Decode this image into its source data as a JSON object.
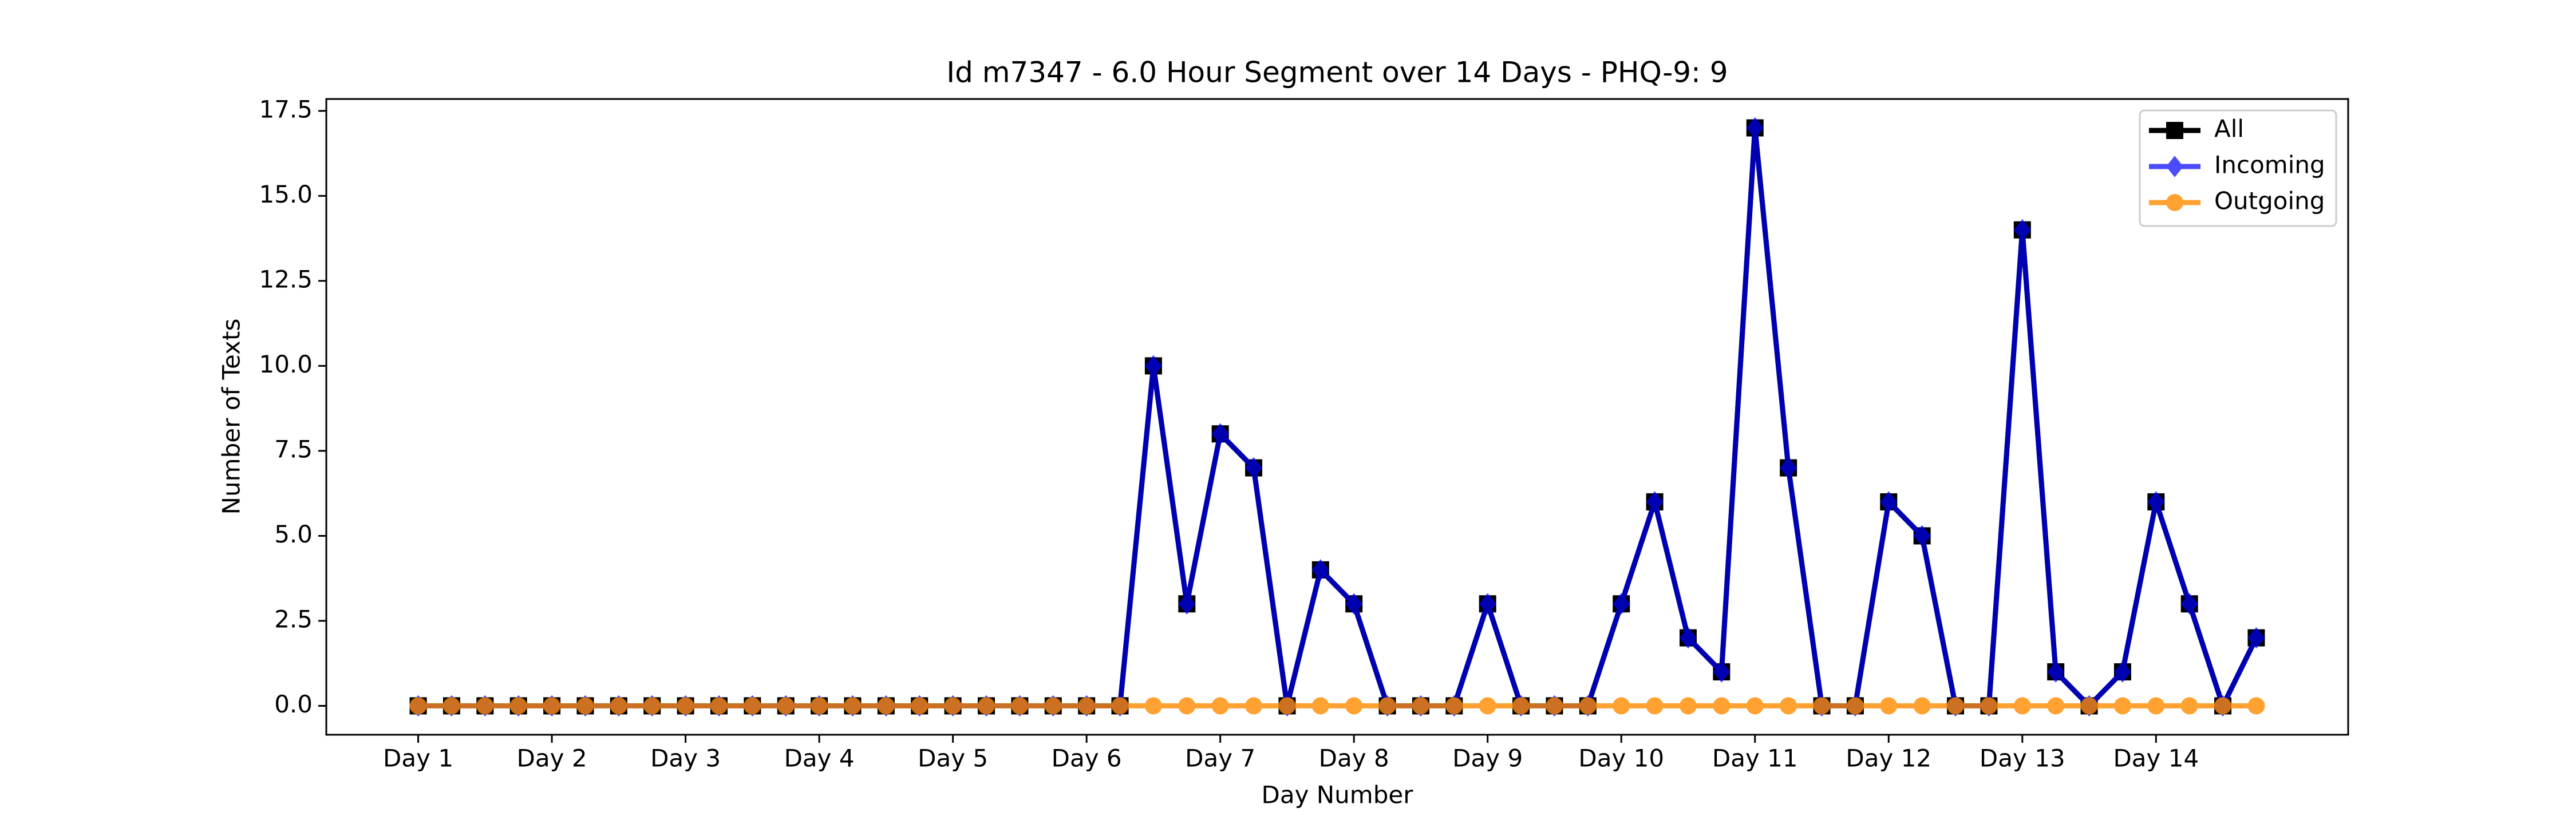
{
  "chart_data": {
    "type": "line",
    "title": "Id m7347 - 6.0 Hour Segment over 14 Days - PHQ-9: 9",
    "x_label": "Day Number",
    "y_label": "Number of Texts",
    "categories": [
      "Day 1",
      null,
      null,
      null,
      "Day 2",
      null,
      null,
      null,
      "Day 3",
      null,
      null,
      null,
      "Day 4",
      null,
      null,
      null,
      "Day 5",
      null,
      null,
      null,
      "Day 6",
      null,
      null,
      null,
      "Day 7",
      null,
      null,
      null,
      "Day 8",
      null,
      null,
      null,
      "Day 9",
      null,
      null,
      null,
      "Day 10",
      null,
      null,
      null,
      "Day 11",
      null,
      null,
      null,
      "Day 12",
      null,
      null,
      null,
      "Day 13",
      null,
      null,
      null,
      "Day 14",
      null,
      null,
      null
    ],
    "series": [
      {
        "name": "All",
        "color": "#000000",
        "marker": "square",
        "values": [
          0,
          0,
          0,
          0,
          0,
          0,
          0,
          0,
          0,
          0,
          0,
          0,
          0,
          0,
          0,
          0,
          0,
          0,
          0,
          0,
          0,
          0,
          10,
          3,
          8,
          7,
          0,
          4,
          3,
          0,
          0,
          0,
          3,
          0,
          0,
          0,
          3,
          6,
          2,
          1,
          17,
          7,
          0,
          0,
          6,
          5,
          0,
          0,
          14,
          1,
          0,
          1,
          6,
          3,
          0,
          2
        ]
      },
      {
        "name": "Incoming",
        "color": "#0000ff",
        "marker": "diamond",
        "values": [
          0,
          0,
          0,
          0,
          0,
          0,
          0,
          0,
          0,
          0,
          0,
          0,
          0,
          0,
          0,
          0,
          0,
          0,
          0,
          0,
          0,
          0,
          10,
          3,
          8,
          7,
          0,
          4,
          3,
          0,
          0,
          0,
          3,
          0,
          0,
          0,
          3,
          6,
          2,
          1,
          17,
          7,
          0,
          0,
          6,
          5,
          0,
          0,
          14,
          1,
          0,
          1,
          6,
          3,
          0,
          2
        ]
      },
      {
        "name": "Outgoing",
        "color": "#ff8c00",
        "marker": "circle",
        "values": [
          0,
          0,
          0,
          0,
          0,
          0,
          0,
          0,
          0,
          0,
          0,
          0,
          0,
          0,
          0,
          0,
          0,
          0,
          0,
          0,
          0,
          0,
          0,
          0,
          0,
          0,
          0,
          0,
          0,
          0,
          0,
          0,
          0,
          0,
          0,
          0,
          0,
          0,
          0,
          0,
          0,
          0,
          0,
          0,
          0,
          0,
          0,
          0,
          0,
          0,
          0,
          0,
          0,
          0,
          0,
          0
        ]
      }
    ],
    "ylim": [
      -0.85,
      17.85
    ],
    "yticks": [
      {
        "value": 0,
        "label": "0.0"
      },
      2.5,
      {
        "value": 5,
        "label": "5.0"
      },
      7.5,
      {
        "value": 10,
        "label": "10.0"
      },
      12.5,
      {
        "value": 15,
        "label": "15.0"
      },
      17.5
    ],
    "grid": false,
    "legend": "upper right"
  }
}
